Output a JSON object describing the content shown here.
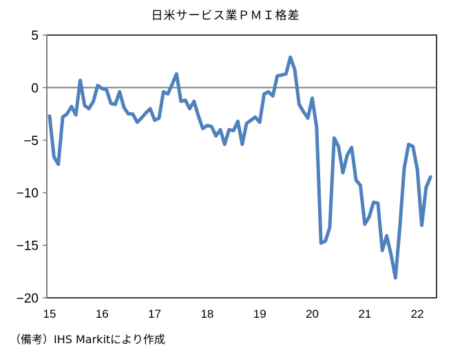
{
  "chart_data": {
    "type": "line",
    "title": "日米サービス業ＰＭＩ格差",
    "xlabel": "",
    "ylabel": "",
    "ylim": [
      -20,
      5
    ],
    "yticks": [
      5,
      0,
      -5,
      -10,
      -15,
      -20
    ],
    "ytick_labels": [
      "5",
      "0",
      "−5",
      "−10",
      "−15",
      "−20"
    ],
    "xtick_labels": [
      "15",
      "16",
      "17",
      "18",
      "19",
      "20",
      "21",
      "22"
    ],
    "grid": false,
    "legend": null,
    "series_color": "#4F81BD",
    "zero_line_color": "#808080",
    "x_start": "2015-01",
    "x_frequency": "monthly",
    "series": [
      {
        "name": "日米サービス業PMI格差",
        "values": [
          -2.7,
          -6.6,
          -7.3,
          -2.8,
          -2.5,
          -1.8,
          -2.6,
          0.7,
          -1.7,
          -2.0,
          -1.3,
          0.2,
          -0.1,
          -0.2,
          -1.5,
          -1.6,
          -0.4,
          -1.9,
          -2.5,
          -2.5,
          -3.3,
          -2.9,
          -2.4,
          -2.0,
          -3.1,
          -2.9,
          -0.4,
          -0.6,
          0.3,
          1.3,
          -1.3,
          -1.2,
          -2.0,
          -1.3,
          -2.7,
          -3.9,
          -3.6,
          -3.7,
          -4.6,
          -4.0,
          -5.4,
          -4.0,
          -4.1,
          -3.2,
          -5.4,
          -3.4,
          -3.1,
          -2.8,
          -3.3,
          -0.6,
          -0.4,
          -0.8,
          1.1,
          1.2,
          1.3,
          2.9,
          1.7,
          -1.6,
          -2.3,
          -2.9,
          -1.0,
          -3.8,
          -14.8,
          -14.6,
          -13.3,
          -4.8,
          -5.6,
          -8.1,
          -6.4,
          -5.7,
          -8.8,
          -9.3,
          -13.0,
          -12.3,
          -10.9,
          -11.0,
          -15.5,
          -14.1,
          -15.9,
          -18.1,
          -13.3,
          -7.7,
          -5.4,
          -5.6,
          -7.8,
          -13.1,
          -9.5,
          -8.5
        ]
      }
    ]
  },
  "source_note": "（備考）IHS Markitにより作成"
}
